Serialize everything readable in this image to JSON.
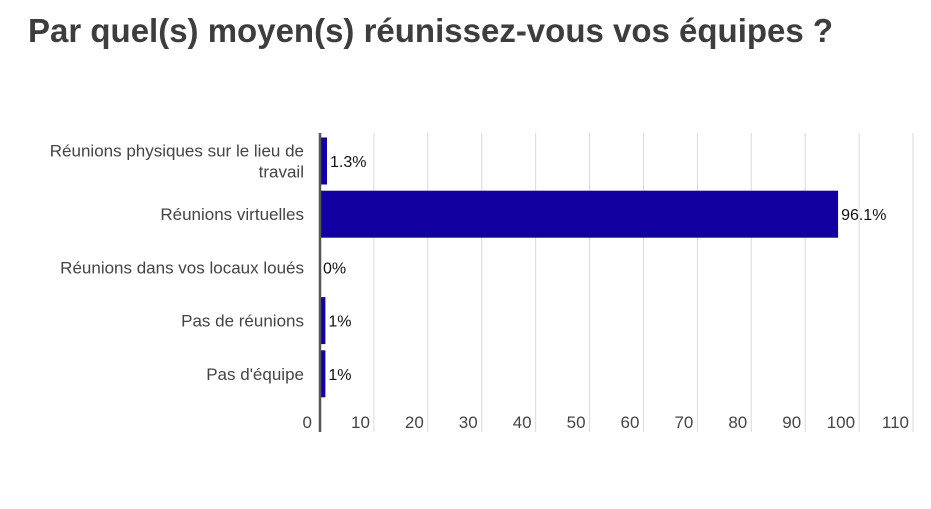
{
  "chart_data": {
    "type": "bar",
    "orientation": "horizontal",
    "title": "Par quel(s) moyen(s) réunissez-vous vos équipes ?",
    "categories": [
      "Réunions physiques sur le lieu de travail",
      "Réunions virtuelles",
      "Réunions dans vos locaux loués",
      "Pas de réunions",
      "Pas d'équipe"
    ],
    "category_lines": [
      [
        "Réunions physiques sur le lieu de",
        "travail"
      ],
      [
        "Réunions virtuelles"
      ],
      [
        "Réunions dans vos locaux loués"
      ],
      [
        "Pas de réunions"
      ],
      [
        "Pas d'équipe"
      ]
    ],
    "values": [
      1.3,
      96.1,
      0,
      1,
      1
    ],
    "data_labels": [
      "1.3%",
      "96.1%",
      "0%",
      "1%",
      "1%"
    ],
    "xlim": [
      0,
      110
    ],
    "xticks": [
      0,
      10,
      20,
      30,
      40,
      50,
      60,
      70,
      80,
      90,
      100,
      110
    ],
    "grid": true,
    "legend": "none",
    "bar_color": "#1200a0",
    "grid_color": "#d9d9d9",
    "axis_color": "#555555"
  }
}
